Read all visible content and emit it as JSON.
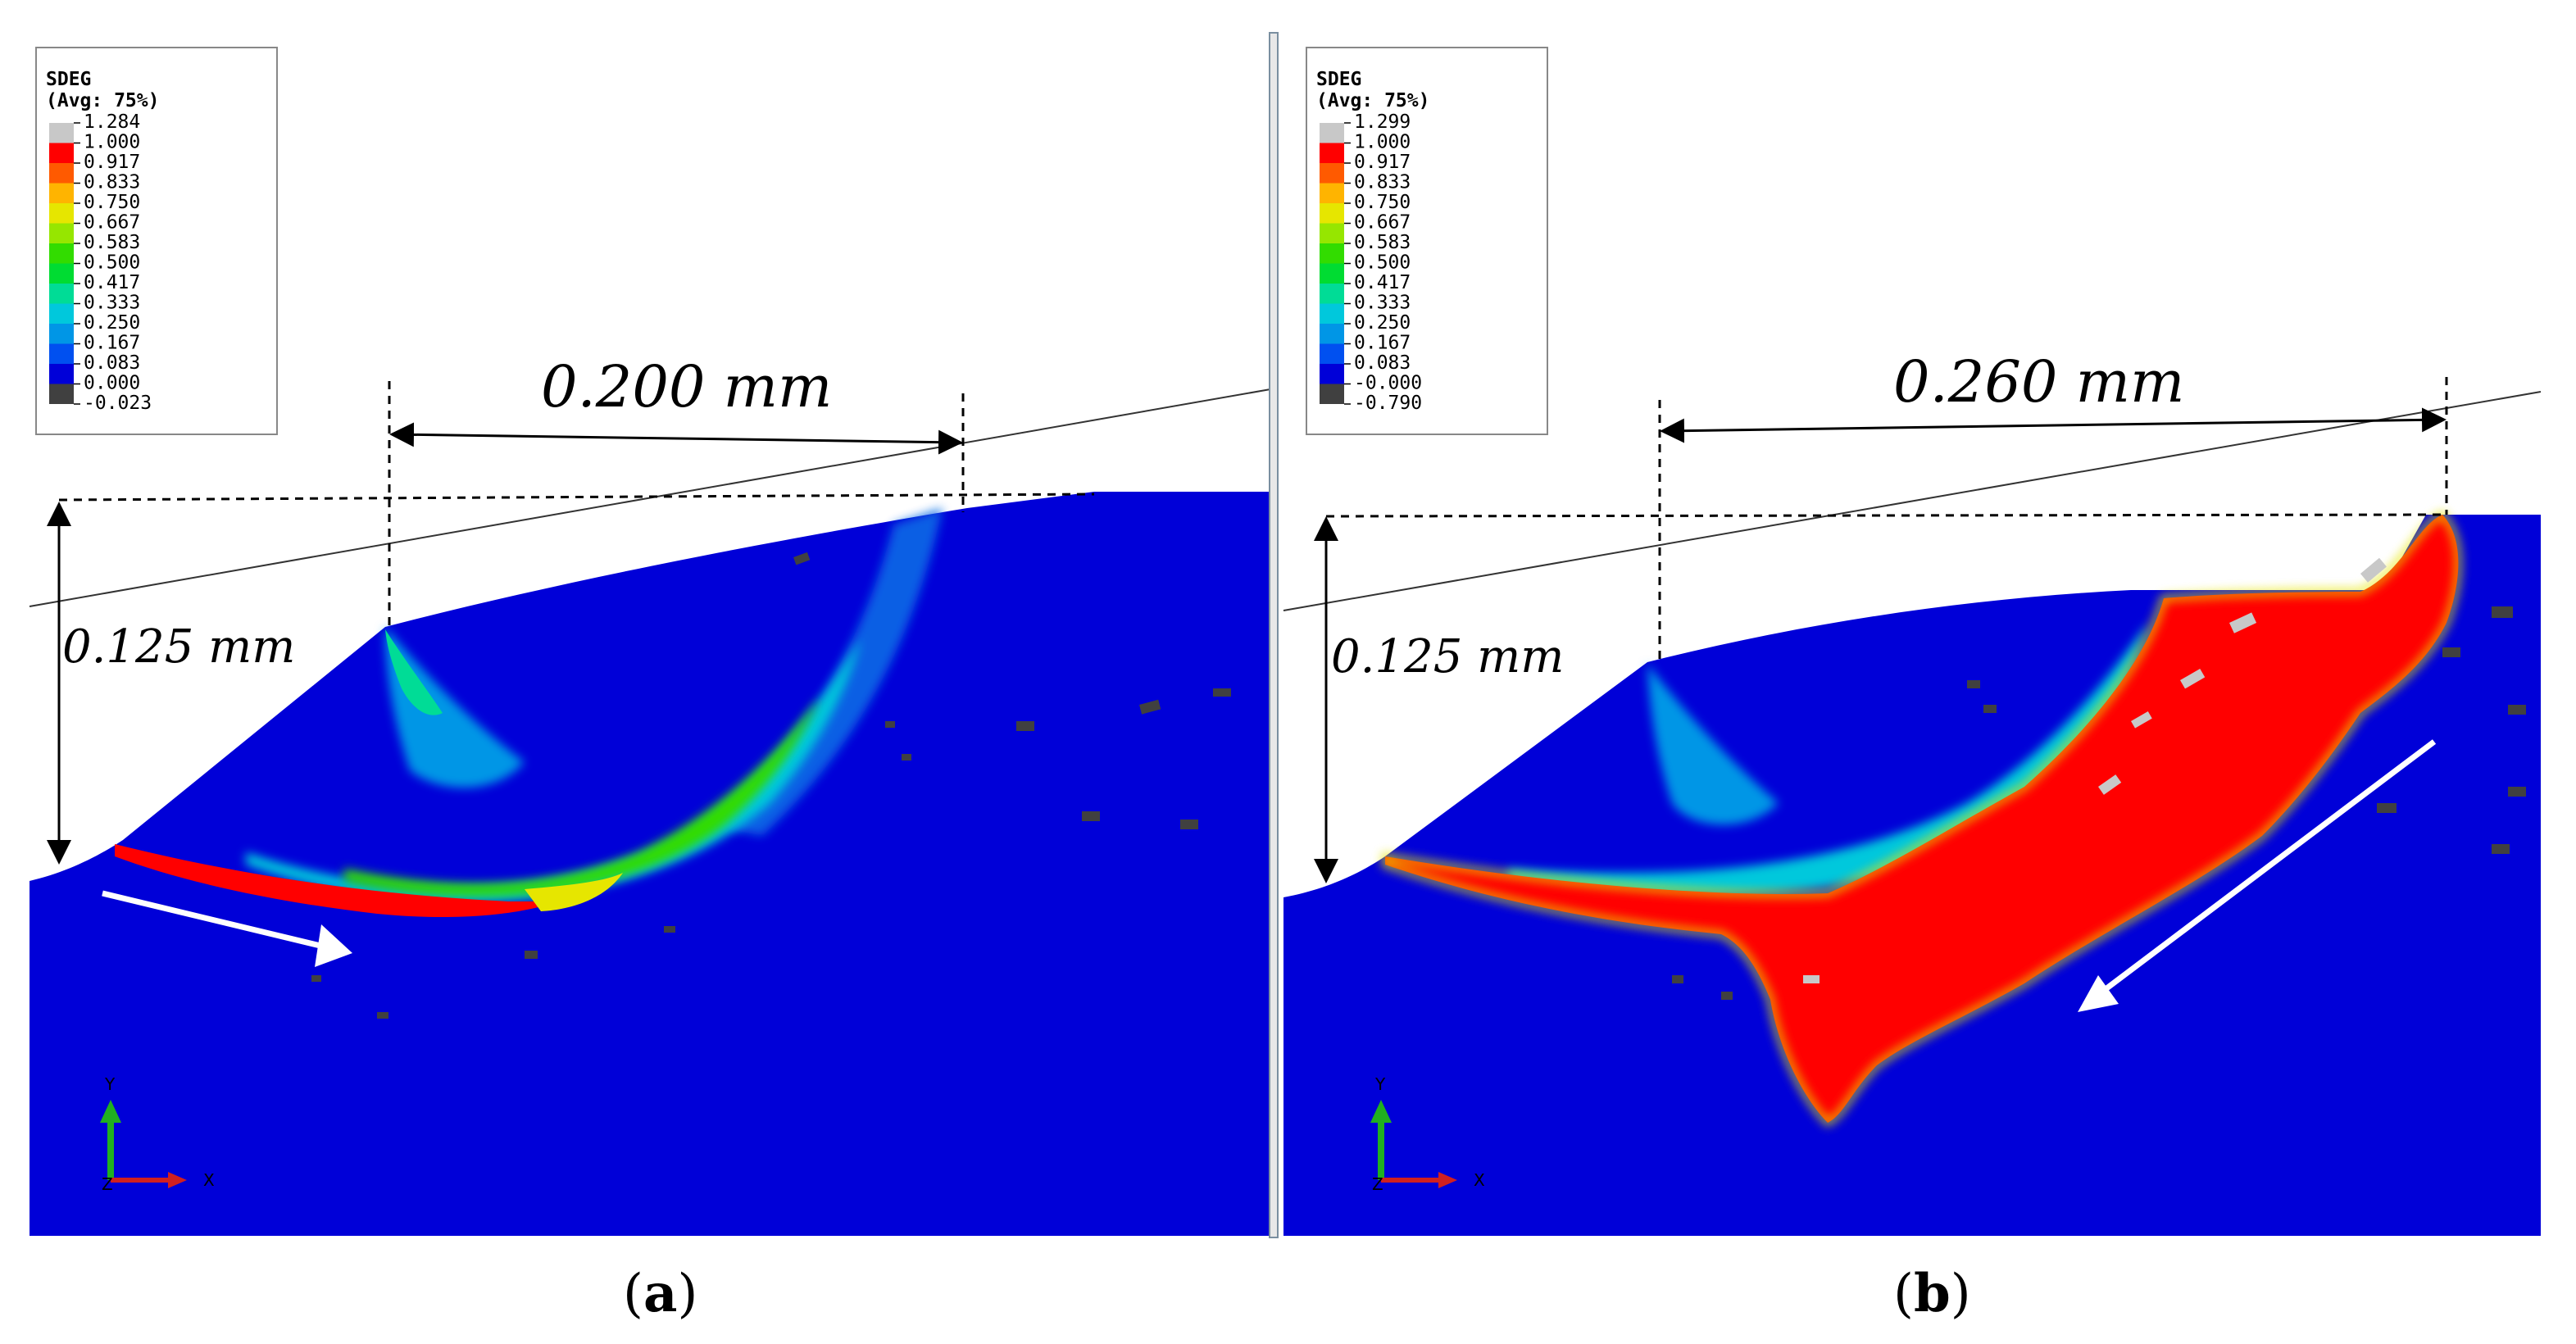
{
  "panels": [
    {
      "id": "a",
      "label_prefix": "(",
      "label_letter": "a",
      "label_suffix": ")",
      "legend": {
        "variable": "SDEG",
        "avg": "(Avg: 75%)",
        "values": [
          "1.284",
          "1.000",
          "0.917",
          "0.833",
          "0.750",
          "0.667",
          "0.583",
          "0.500",
          "0.417",
          "0.333",
          "0.250",
          "0.167",
          "0.083",
          "0.000",
          "-0.023"
        ]
      },
      "dim_horizontal": "0.200 mm",
      "dim_vertical": "0.125 mm",
      "axis_y": "Y",
      "axis_x": "X",
      "axis_z": "Z"
    },
    {
      "id": "b",
      "label_prefix": "(",
      "label_letter": "b",
      "label_suffix": ")",
      "legend": {
        "variable": "SDEG",
        "avg": "(Avg: 75%)",
        "values": [
          "1.299",
          "1.000",
          "0.917",
          "0.833",
          "0.750",
          "0.667",
          "0.583",
          "0.500",
          "0.417",
          "0.333",
          "0.250",
          "0.167",
          "0.083",
          "-0.000",
          "-0.790"
        ]
      },
      "dim_horizontal": "0.260 mm",
      "dim_vertical": "0.125 mm",
      "axis_y": "Y",
      "axis_x": "X",
      "axis_z": "Z"
    }
  ],
  "colors": {
    "contour_levels": [
      "#c8c8c8",
      "#ff0000",
      "#ff5a00",
      "#ffb400",
      "#e6e600",
      "#96e600",
      "#32dc00",
      "#00dc32",
      "#00dc96",
      "#00c8dc",
      "#0096e6",
      "#0050f0",
      "#0000d8",
      "#404040"
    ],
    "background_material": "#0000d8",
    "damaged": "#ff0000",
    "arrow": "#ffffff",
    "axis_y": "#20b020",
    "axis_x": "#d02020"
  }
}
